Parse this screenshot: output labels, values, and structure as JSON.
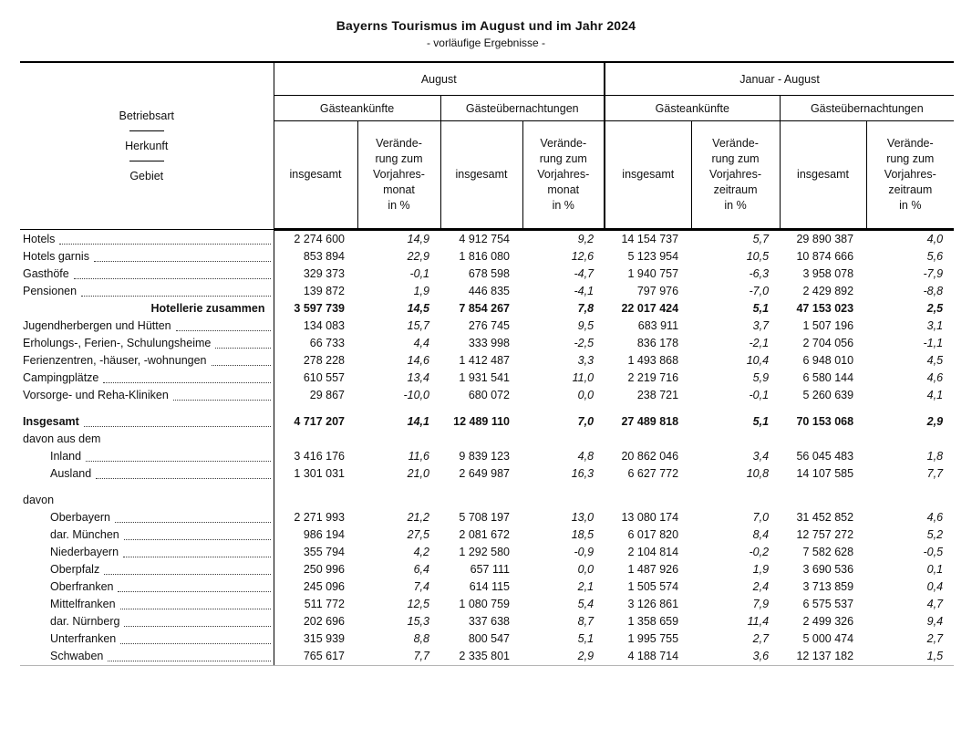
{
  "title": "Bayerns Tourismus im August und im Jahr 2024",
  "subtitle": "- vorläufige Ergebnisse -",
  "header": {
    "stub_lines": [
      "Betriebsart",
      "Herkunft",
      "Gebiet"
    ],
    "periods": [
      "August",
      "Januar - August"
    ],
    "measures": [
      "Gästeankünfte",
      "Gästeübernachtungen",
      "Gästeankünfte",
      "Gästeübernachtungen"
    ],
    "col_headers": [
      "insgesamt",
      "Verände-\nrung zum\nVorjahres-\nmonat\nin %",
      "insgesamt",
      "Verände-\nrung zum\nVorjahres-\nmonat\nin %",
      "insgesamt",
      "Verände-\nrung zum\nVorjahres-\nzeitraum\nin %",
      "insgesamt",
      "Verände-\nrung zum\nVorjahres-\nzeitraum\nin %"
    ]
  },
  "rows": [
    {
      "style": "normal",
      "indent": false,
      "leaders": true,
      "label": "Hotels",
      "values": [
        "2 274 600",
        "14,9",
        "4 912 754",
        "9,2",
        "14 154 737",
        "5,7",
        "29 890 387",
        "4,0"
      ]
    },
    {
      "style": "normal",
      "indent": false,
      "leaders": true,
      "label": "Hotels garnis",
      "values": [
        "853 894",
        "22,9",
        "1 816 080",
        "12,6",
        "5 123 954",
        "10,5",
        "10 874 666",
        "5,6"
      ]
    },
    {
      "style": "normal",
      "indent": false,
      "leaders": true,
      "label": "Gasthöfe",
      "values": [
        "329 373",
        "-0,1",
        "678 598",
        "-4,7",
        "1 940 757",
        "-6,3",
        "3 958 078",
        "-7,9"
      ]
    },
    {
      "style": "normal",
      "indent": false,
      "leaders": true,
      "label": "Pensionen",
      "values": [
        "139 872",
        "1,9",
        "446 835",
        "-4,1",
        "797 976",
        "-7,0",
        "2 429 892",
        "-8,8"
      ]
    },
    {
      "style": "sum-right",
      "indent": false,
      "leaders": false,
      "label": "Hotellerie zusammen",
      "values": [
        "3 597 739",
        "14,5",
        "7 854 267",
        "7,8",
        "22 017 424",
        "5,1",
        "47 153 023",
        "2,5"
      ]
    },
    {
      "style": "normal",
      "indent": false,
      "leaders": true,
      "label": "Jugendherbergen und Hütten",
      "values": [
        "134 083",
        "15,7",
        "276 745",
        "9,5",
        "683 911",
        "3,7",
        "1 507 196",
        "3,1"
      ]
    },
    {
      "style": "normal",
      "indent": false,
      "leaders": true,
      "label": "Erholungs-, Ferien-, Schulungsheime",
      "values": [
        "66 733",
        "4,4",
        "333 998",
        "-2,5",
        "836 178",
        "-2,1",
        "2 704 056",
        "-1,1"
      ]
    },
    {
      "style": "normal",
      "indent": false,
      "leaders": true,
      "label": "Ferienzentren, -häuser, -wohnungen",
      "values": [
        "278 228",
        "14,6",
        "1 412 487",
        "3,3",
        "1 493 868",
        "10,4",
        "6 948 010",
        "4,5"
      ]
    },
    {
      "style": "normal",
      "indent": false,
      "leaders": true,
      "label": "Campingplätze",
      "values": [
        "610 557",
        "13,4",
        "1 931 541",
        "11,0",
        "2 219 716",
        "5,9",
        "6 580 144",
        "4,6"
      ]
    },
    {
      "style": "normal",
      "indent": false,
      "leaders": true,
      "label": "Vorsorge- und Reha-Kliniken",
      "values": [
        "29 867",
        "-10,0",
        "680 072",
        "0,0",
        "238 721",
        "-0,1",
        "5 260 639",
        "4,1"
      ]
    },
    {
      "style": "spacer"
    },
    {
      "style": "bold",
      "indent": false,
      "leaders": true,
      "label": "Insgesamt",
      "values": [
        "4 717 207",
        "14,1",
        "12 489 110",
        "7,0",
        "27 489 818",
        "5,1",
        "70 153 068",
        "2,9"
      ]
    },
    {
      "style": "heading",
      "indent": false,
      "leaders": false,
      "label": "davon aus dem",
      "values": [
        "",
        "",
        "",
        "",
        "",
        "",
        "",
        ""
      ]
    },
    {
      "style": "normal",
      "indent": true,
      "leaders": true,
      "label": "Inland",
      "values": [
        "3 416 176",
        "11,6",
        "9 839 123",
        "4,8",
        "20 862 046",
        "3,4",
        "56 045 483",
        "1,8"
      ]
    },
    {
      "style": "normal",
      "indent": true,
      "leaders": true,
      "label": "Ausland",
      "values": [
        "1 301 031",
        "21,0",
        "2 649 987",
        "16,3",
        "6 627 772",
        "10,8",
        "14 107 585",
        "7,7"
      ]
    },
    {
      "style": "spacer"
    },
    {
      "style": "heading",
      "indent": false,
      "leaders": false,
      "label": "davon",
      "values": [
        "",
        "",
        "",
        "",
        "",
        "",
        "",
        ""
      ]
    },
    {
      "style": "normal",
      "indent": true,
      "leaders": true,
      "label": "Oberbayern",
      "values": [
        "2 271 993",
        "21,2",
        "5 708 197",
        "13,0",
        "13 080 174",
        "7,0",
        "31 452 852",
        "4,6"
      ]
    },
    {
      "style": "normal",
      "indent": true,
      "leaders": true,
      "label": "dar.  München",
      "values": [
        "986 194",
        "27,5",
        "2 081 672",
        "18,5",
        "6 017 820",
        "8,4",
        "12 757 272",
        "5,2"
      ]
    },
    {
      "style": "normal",
      "indent": true,
      "leaders": true,
      "label": "Niederbayern",
      "values": [
        "355 794",
        "4,2",
        "1 292 580",
        "-0,9",
        "2 104 814",
        "-0,2",
        "7 582 628",
        "-0,5"
      ]
    },
    {
      "style": "normal",
      "indent": true,
      "leaders": true,
      "label": "Oberpfalz",
      "values": [
        "250 996",
        "6,4",
        "657 111",
        "0,0",
        "1 487 926",
        "1,9",
        "3 690 536",
        "0,1"
      ]
    },
    {
      "style": "normal",
      "indent": true,
      "leaders": true,
      "label": "Oberfranken",
      "values": [
        "245 096",
        "7,4",
        "614 115",
        "2,1",
        "1 505 574",
        "2,4",
        "3 713 859",
        "0,4"
      ]
    },
    {
      "style": "normal",
      "indent": true,
      "leaders": true,
      "label": "Mittelfranken",
      "values": [
        "511 772",
        "12,5",
        "1 080 759",
        "5,4",
        "3 126 861",
        "7,9",
        "6 575 537",
        "4,7"
      ]
    },
    {
      "style": "normal",
      "indent": true,
      "leaders": true,
      "label": "dar.  Nürnberg",
      "values": [
        "202 696",
        "15,3",
        "337 638",
        "8,7",
        "1 358 659",
        "11,4",
        "2 499 326",
        "9,4"
      ]
    },
    {
      "style": "normal",
      "indent": true,
      "leaders": true,
      "label": "Unterfranken",
      "values": [
        "315 939",
        "8,8",
        "800 547",
        "5,1",
        "1 995 755",
        "2,7",
        "5 000 474",
        "2,7"
      ]
    },
    {
      "style": "normal",
      "indent": true,
      "leaders": true,
      "label": "Schwaben",
      "values": [
        "765 617",
        "7,7",
        "2 335 801",
        "2,9",
        "4 188 714",
        "3,6",
        "12 137 182",
        "1,5"
      ]
    }
  ]
}
